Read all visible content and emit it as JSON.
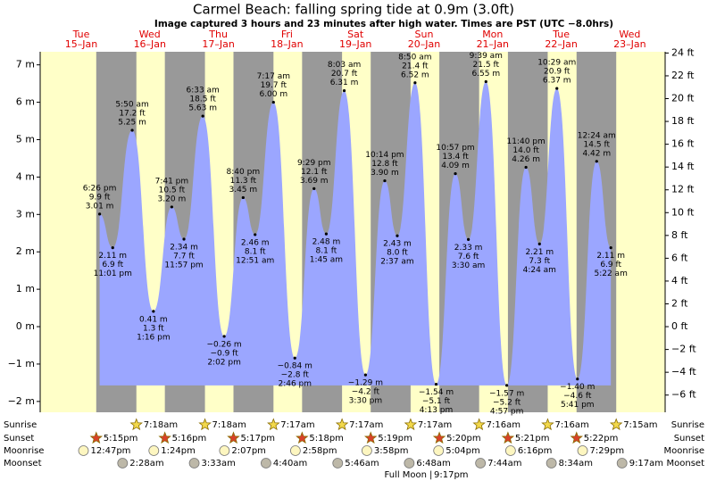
{
  "chart_data": {
    "type": "tide",
    "title": "Carmel Beach: falling  spring tide at 0.9m (3.0ft)",
    "subtitle": "Image captured 3 hours and 23 minutes after high water. Times are PST (UTC −8.0hrs)",
    "ylim": [
      -2.29,
      7.35
    ],
    "yticks": [
      {
        "value": 7,
        "label": "7 m"
      },
      {
        "value": 6,
        "label": "6 m"
      },
      {
        "value": 5,
        "label": "5 m"
      },
      {
        "value": 4,
        "label": "4 m"
      },
      {
        "value": 3,
        "label": "3 m"
      },
      {
        "value": 2,
        "label": "2 m"
      },
      {
        "value": 1,
        "label": "1 m"
      },
      {
        "value": 0,
        "label": "0 m"
      },
      {
        "value": -1,
        "label": "−1 m"
      },
      {
        "value": -2,
        "label": "−2 m"
      }
    ],
    "y2lim": [
      -7.51,
      24.11
    ],
    "y2ticks": [
      {
        "value": 24,
        "label": "24 ft"
      },
      {
        "value": 22,
        "label": "22 ft"
      },
      {
        "value": 20,
        "label": "20 ft"
      },
      {
        "value": 18,
        "label": "18 ft"
      },
      {
        "value": 16,
        "label": "16 ft"
      },
      {
        "value": 14,
        "label": "14 ft"
      },
      {
        "value": 12,
        "label": "12 ft"
      },
      {
        "value": 10,
        "label": "10 ft"
      },
      {
        "value": 8,
        "label": "8 ft"
      },
      {
        "value": 6,
        "label": "6 ft"
      },
      {
        "value": 4,
        "label": "4 ft"
      },
      {
        "value": 2,
        "label": "2 ft"
      },
      {
        "value": 0,
        "label": "0 ft"
      },
      {
        "value": -2,
        "label": "−2 ft"
      },
      {
        "value": -4,
        "label": "−4 ft"
      },
      {
        "value": -6,
        "label": "−6 ft"
      }
    ],
    "row_labels": {
      "sunrise": "Sunrise",
      "sunset": "Sunset",
      "moonrise": "Moonrise",
      "moonset": "Moonset"
    },
    "full_moon": {
      "label": "Full Moon",
      "time": "9:17pm"
    },
    "colors": {
      "water": "#9ba6ff",
      "day": "#ffffc8",
      "night": "#999999",
      "date": "#e00000"
    },
    "days": [
      {
        "dow": "Tue",
        "date": "15–Jan",
        "sunset": "5:15pm",
        "moonrise": "12:47pm",
        "tides": [
          {
            "time": "6:26 pm",
            "height_m": 3.01,
            "label_m": "3.01 m",
            "label_ft": "9.9 ft"
          },
          {
            "time": "11:01 pm",
            "height_m": 2.11,
            "label_m": "2.11 m",
            "label_ft": "6.9 ft"
          }
        ]
      },
      {
        "dow": "Wed",
        "date": "16–Jan",
        "sunrise": "7:18am",
        "sunset": "5:16pm",
        "moonrise": "1:24pm",
        "moonset": "2:28am",
        "tides": [
          {
            "time": "5:50 am",
            "height_m": 5.25,
            "label_m": "5.25 m",
            "label_ft": "17.2 ft"
          },
          {
            "time": "1:16 pm",
            "height_m": 0.41,
            "label_m": "0.41 m",
            "label_ft": "1.3 ft"
          },
          {
            "time": "7:41 pm",
            "height_m": 3.2,
            "label_m": "3.20 m",
            "label_ft": "10.5 ft"
          },
          {
            "time": "11:57 pm",
            "height_m": 2.34,
            "label_m": "2.34 m",
            "label_ft": "7.7 ft"
          }
        ]
      },
      {
        "dow": "Thu",
        "date": "17–Jan",
        "sunrise": "7:18am",
        "sunset": "5:17pm",
        "moonrise": "2:07pm",
        "moonset": "3:33am",
        "tides": [
          {
            "time": "6:33 am",
            "height_m": 5.63,
            "label_m": "5.63 m",
            "label_ft": "18.5 ft"
          },
          {
            "time": "2:02 pm",
            "height_m": -0.26,
            "label_m": "−0.26 m",
            "label_ft": "−0.9 ft"
          },
          {
            "time": "8:40 pm",
            "height_m": 3.45,
            "label_m": "3.45 m",
            "label_ft": "11.3 ft"
          }
        ]
      },
      {
        "dow": "Fri",
        "date": "18–Jan",
        "sunrise": "7:17am",
        "sunset": "5:18pm",
        "moonrise": "2:58pm",
        "moonset": "4:40am",
        "tides": [
          {
            "time": "12:51 am",
            "height_m": 2.46,
            "label_m": "2.46 m",
            "label_ft": "8.1 ft"
          },
          {
            "time": "7:17 am",
            "height_m": 6.0,
            "label_m": "6.00 m",
            "label_ft": "19.7 ft"
          },
          {
            "time": "2:46 pm",
            "height_m": -0.84,
            "label_m": "−0.84 m",
            "label_ft": "−2.8 ft"
          },
          {
            "time": "9:29 pm",
            "height_m": 3.69,
            "label_m": "3.69 m",
            "label_ft": "12.1 ft"
          }
        ]
      },
      {
        "dow": "Sat",
        "date": "19–Jan",
        "sunrise": "7:17am",
        "sunset": "5:19pm",
        "moonrise": "3:58pm",
        "moonset": "5:46am",
        "tides": [
          {
            "time": "1:45 am",
            "height_m": 2.48,
            "label_m": "2.48 m",
            "label_ft": "8.1 ft"
          },
          {
            "time": "8:03 am",
            "height_m": 6.31,
            "label_m": "6.31 m",
            "label_ft": "20.7 ft"
          },
          {
            "time": "3:30 pm",
            "height_m": -1.29,
            "label_m": "−1.29 m",
            "label_ft": "−4.2 ft"
          },
          {
            "time": "10:14 pm",
            "height_m": 3.9,
            "label_m": "3.90 m",
            "label_ft": "12.8 ft"
          }
        ]
      },
      {
        "dow": "Sun",
        "date": "20–Jan",
        "sunrise": "7:17am",
        "sunset": "5:20pm",
        "moonrise": "5:04pm",
        "moonset": "6:48am",
        "tides": [
          {
            "time": "2:37 am",
            "height_m": 2.43,
            "label_m": "2.43 m",
            "label_ft": "8.0 ft"
          },
          {
            "time": "8:50 am",
            "height_m": 6.52,
            "label_m": "6.52 m",
            "label_ft": "21.4 ft"
          },
          {
            "time": "4:13 pm",
            "height_m": -1.54,
            "label_m": "−1.54 m",
            "label_ft": "−5.1 ft"
          },
          {
            "time": "10:57 pm",
            "height_m": 4.09,
            "label_m": "4.09 m",
            "label_ft": "13.4 ft"
          }
        ]
      },
      {
        "dow": "Mon",
        "date": "21–Jan",
        "sunrise": "7:16am",
        "sunset": "5:21pm",
        "moonrise": "6:16pm",
        "moonset": "7:44am",
        "tides": [
          {
            "time": "3:30 am",
            "height_m": 2.33,
            "label_m": "2.33 m",
            "label_ft": "7.6 ft"
          },
          {
            "time": "9:39 am",
            "height_m": 6.55,
            "label_m": "6.55 m",
            "label_ft": "21.5 ft"
          },
          {
            "time": "4:57 pm",
            "height_m": -1.57,
            "label_m": "−1.57 m",
            "label_ft": "−5.2 ft"
          },
          {
            "time": "11:40 pm",
            "height_m": 4.26,
            "label_m": "4.26 m",
            "label_ft": "14.0 ft"
          }
        ]
      },
      {
        "dow": "Tue",
        "date": "22–Jan",
        "sunrise": "7:16am",
        "sunset": "5:22pm",
        "moonrise": "7:29pm",
        "moonset": "8:34am",
        "tides": [
          {
            "time": "4:24 am",
            "height_m": 2.21,
            "label_m": "2.21 m",
            "label_ft": "7.3 ft"
          },
          {
            "time": "10:29 am",
            "height_m": 6.37,
            "label_m": "6.37 m",
            "label_ft": "20.9 ft"
          },
          {
            "time": "5:41 pm",
            "height_m": -1.4,
            "label_m": "−1.40 m",
            "label_ft": "−4.6 ft"
          }
        ]
      },
      {
        "dow": "Wed",
        "date": "23–Jan",
        "sunrise": "7:15am",
        "moonset": "9:17am",
        "tides": [
          {
            "time": "12:24 am",
            "height_m": 4.42,
            "label_m": "4.42 m",
            "label_ft": "14.5 ft"
          },
          {
            "time": "5:22 am",
            "height_m": 2.11,
            "label_m": "2.11 m",
            "label_ft": "6.9 ft"
          }
        ]
      }
    ]
  }
}
